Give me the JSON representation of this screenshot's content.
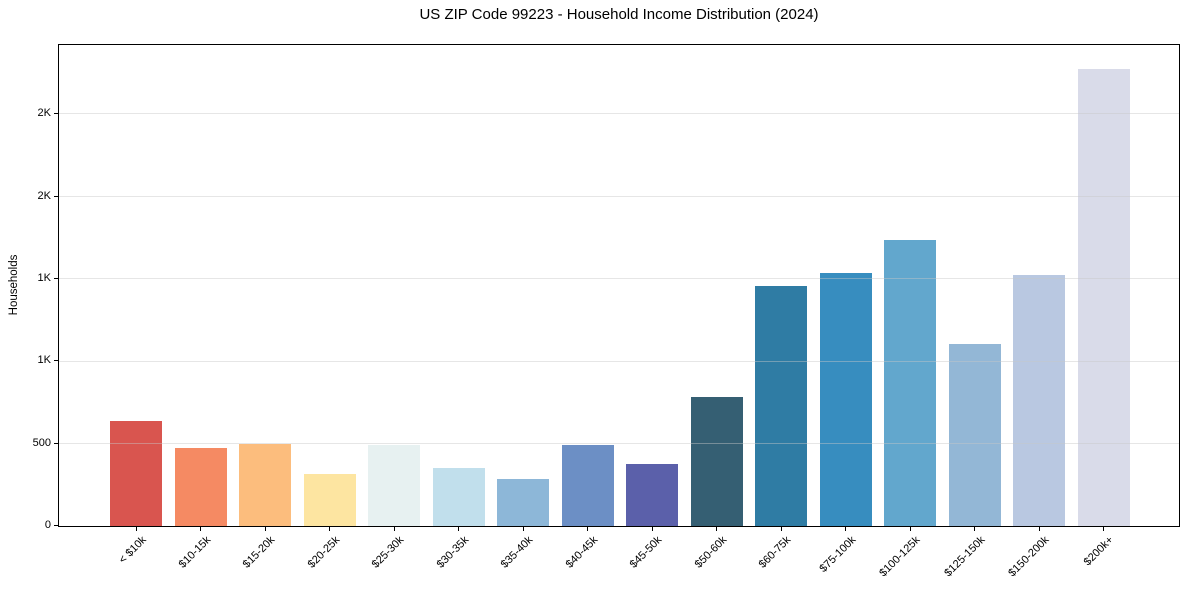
{
  "chart_data": {
    "type": "bar",
    "title": "US ZIP Code 99223 - Household Income Distribution (2024)",
    "xlabel": "",
    "ylabel": "Households",
    "categories": [
      "< $10k",
      "$10-15k",
      "$15-20k",
      "$20-25k",
      "$25-30k",
      "$30-35k",
      "$35-40k",
      "$40-45k",
      "$45-50k",
      "$50-60k",
      "$60-75k",
      "$75-100k",
      "$100-125k",
      "$125-150k",
      "$150-200k",
      "$200k+"
    ],
    "values": [
      635,
      475,
      495,
      315,
      490,
      355,
      285,
      490,
      375,
      785,
      1455,
      1535,
      1735,
      1105,
      1520,
      2775
    ],
    "bar_colors": [
      "#d9554f",
      "#f58a63",
      "#fcbd7d",
      "#fde5a1",
      "#e7f1f1",
      "#c1dfec",
      "#8db7d8",
      "#6c8fc5",
      "#5b60aa",
      "#355f73",
      "#2f7ca4",
      "#378dbf",
      "#62a7cd",
      "#93b7d6",
      "#b9c8e1",
      "#d9dbe9"
    ],
    "ylim": [
      0,
      2915
    ],
    "yticks": [
      {
        "value": 0,
        "label": "0"
      },
      {
        "value": 500,
        "label": "500"
      },
      {
        "value": 1000,
        "label": "1K"
      },
      {
        "value": 1500,
        "label": "1K"
      },
      {
        "value": 2000,
        "label": "2K"
      },
      {
        "value": 2500,
        "label": "2K"
      }
    ],
    "grid": "horizontal",
    "legend": "none",
    "colors": {
      "background": "#ffffff",
      "spine": "#000000",
      "gridline": "#e6e6e6",
      "text": "#000000"
    }
  }
}
